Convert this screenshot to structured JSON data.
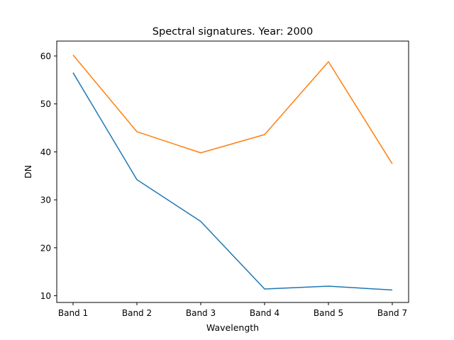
{
  "chart_data": {
    "type": "line",
    "title": "Spectral signatures. Year: 2000",
    "xlabel": "Wavelength",
    "ylabel": "DN",
    "categories": [
      "Band 1",
      "Band 2",
      "Band 3",
      "Band 4",
      "Band 5",
      "Band 7"
    ],
    "yticks": [
      10,
      20,
      30,
      40,
      50,
      60
    ],
    "ylim": [
      8.6,
      63.1
    ],
    "grid": false,
    "legend": "none",
    "series": [
      {
        "color": "#1f77b4",
        "values": [
          56.5,
          34.2,
          25.5,
          11.4,
          12.0,
          11.2
        ]
      },
      {
        "color": "#ff7f0e",
        "values": [
          60.2,
          44.2,
          39.8,
          43.6,
          58.8,
          37.5
        ]
      }
    ]
  }
}
